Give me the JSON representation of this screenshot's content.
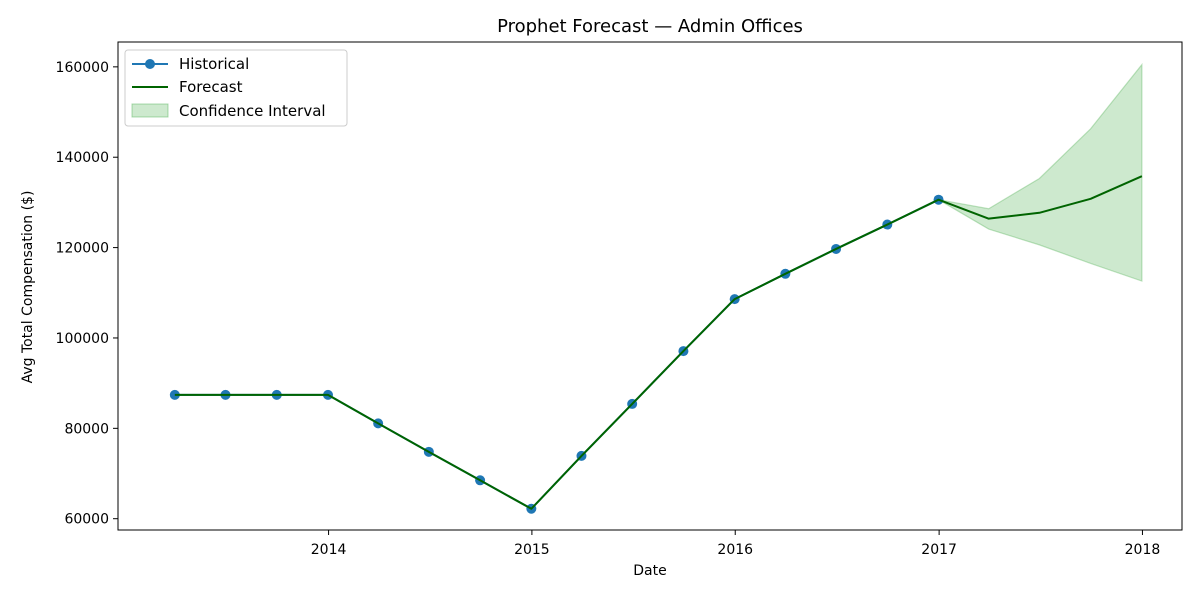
{
  "chart_data": {
    "type": "line",
    "title": "Prophet Forecast — Admin Offices",
    "xlabel": "Date",
    "ylabel": "Avg Total Compensation ($)",
    "x_ticks": [
      "2014",
      "2015",
      "2016",
      "2017",
      "2018"
    ],
    "y_ticks": [
      60000,
      80000,
      100000,
      120000,
      140000,
      160000
    ],
    "ylim": [
      57500,
      165500
    ],
    "xlim": [
      "2012-12-19",
      "2018-03-13"
    ],
    "grid": false,
    "legend_position": "top-left",
    "series": [
      {
        "name": "Historical",
        "color": "#1f77b4",
        "marker": "circle",
        "points": [
          {
            "date": "2013-03-31",
            "value": 87400
          },
          {
            "date": "2013-06-30",
            "value": 87400
          },
          {
            "date": "2013-09-30",
            "value": 87400
          },
          {
            "date": "2013-12-31",
            "value": 87400
          },
          {
            "date": "2014-03-31",
            "value": 81100
          },
          {
            "date": "2014-06-30",
            "value": 74800
          },
          {
            "date": "2014-09-30",
            "value": 68500
          },
          {
            "date": "2014-12-31",
            "value": 62200
          },
          {
            "date": "2015-03-31",
            "value": 73900
          },
          {
            "date": "2015-06-30",
            "value": 85400
          },
          {
            "date": "2015-09-30",
            "value": 97100
          },
          {
            "date": "2015-12-31",
            "value": 108600
          },
          {
            "date": "2016-03-31",
            "value": 114200
          },
          {
            "date": "2016-06-30",
            "value": 119700
          },
          {
            "date": "2016-09-30",
            "value": 125100
          },
          {
            "date": "2016-12-31",
            "value": 130600
          }
        ]
      },
      {
        "name": "Forecast",
        "color": "#006400",
        "points": [
          {
            "date": "2013-03-31",
            "value": 87400
          },
          {
            "date": "2013-06-30",
            "value": 87400
          },
          {
            "date": "2013-09-30",
            "value": 87400
          },
          {
            "date": "2013-12-31",
            "value": 87400
          },
          {
            "date": "2014-03-31",
            "value": 81100
          },
          {
            "date": "2014-06-30",
            "value": 74800
          },
          {
            "date": "2014-09-30",
            "value": 68500
          },
          {
            "date": "2014-12-31",
            "value": 62200
          },
          {
            "date": "2015-03-31",
            "value": 73900
          },
          {
            "date": "2015-06-30",
            "value": 85400
          },
          {
            "date": "2015-09-30",
            "value": 97100
          },
          {
            "date": "2015-12-31",
            "value": 108600
          },
          {
            "date": "2016-03-31",
            "value": 114200
          },
          {
            "date": "2016-06-30",
            "value": 119700
          },
          {
            "date": "2016-09-30",
            "value": 125100
          },
          {
            "date": "2016-12-31",
            "value": 130600
          },
          {
            "date": "2017-03-31",
            "value": 126400
          },
          {
            "date": "2017-06-30",
            "value": 127700
          },
          {
            "date": "2017-09-30",
            "value": 130800
          },
          {
            "date": "2017-12-31",
            "value": 135800
          }
        ]
      },
      {
        "name": "Confidence Interval",
        "color": "#4caf50",
        "type": "band",
        "points": [
          {
            "date": "2016-12-31",
            "lower": 130600,
            "upper": 130600
          },
          {
            "date": "2017-03-31",
            "lower": 124100,
            "upper": 128600
          },
          {
            "date": "2017-06-30",
            "lower": 120600,
            "upper": 135300
          },
          {
            "date": "2017-09-30",
            "lower": 116500,
            "upper": 146300
          },
          {
            "date": "2017-12-31",
            "lower": 112600,
            "upper": 160500
          }
        ]
      }
    ]
  }
}
